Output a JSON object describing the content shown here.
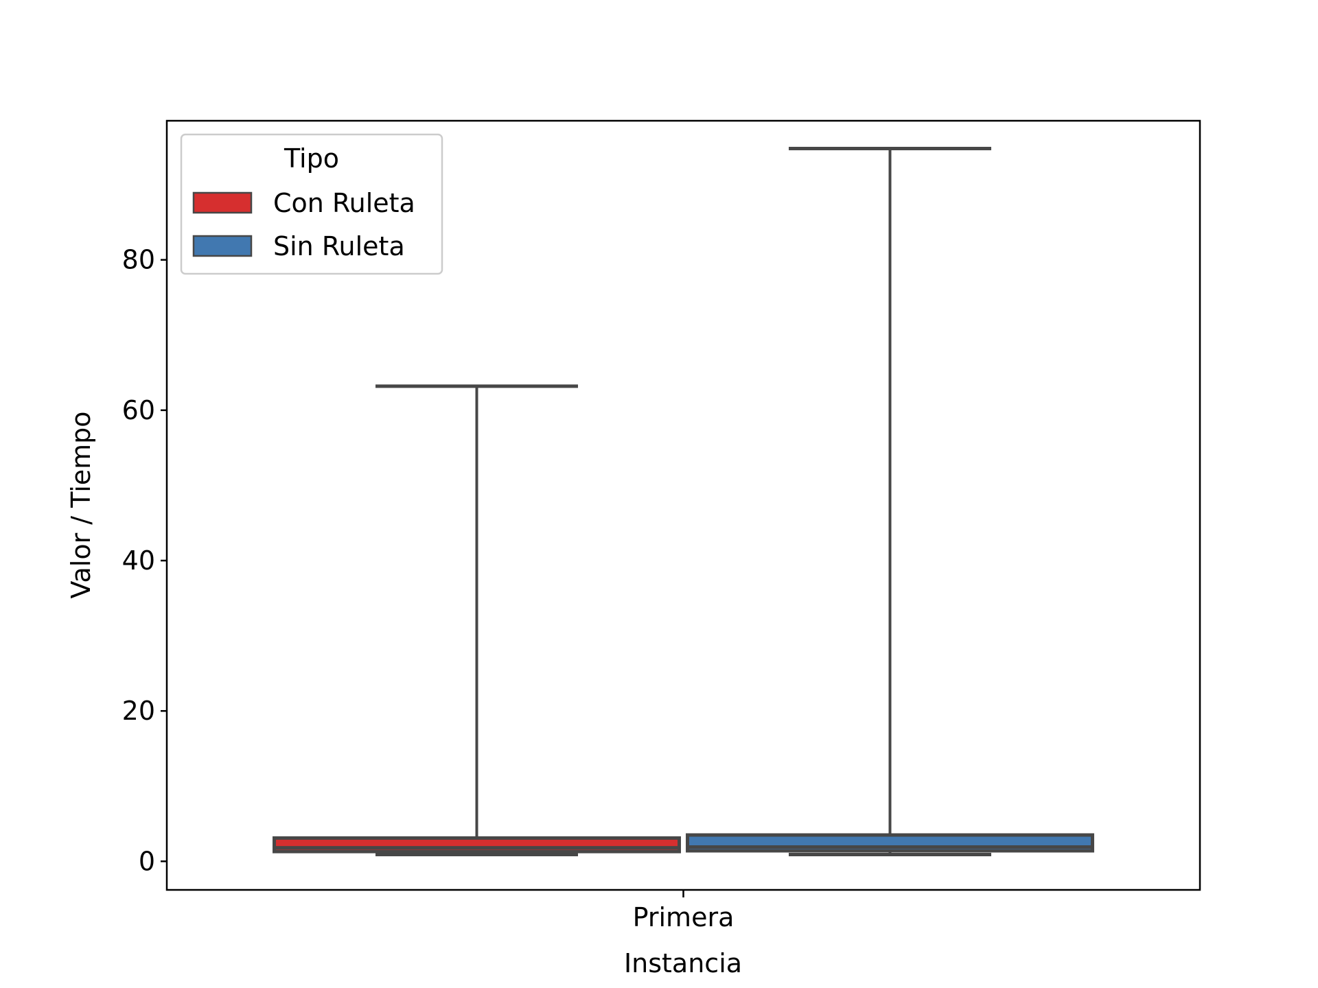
{
  "chart_data": {
    "type": "box",
    "xlabel": "Instancia",
    "ylabel": "Valor / Tiempo",
    "categories": [
      "Primera"
    ],
    "ylim": [
      -3.8,
      98.5
    ],
    "yticks": [
      0,
      20,
      40,
      60,
      80
    ],
    "grid": false,
    "legend": {
      "title": "Tipo",
      "placement": "top-left",
      "entries": [
        "Con Ruleta",
        "Sin Ruleta"
      ]
    },
    "series": [
      {
        "name": "Con Ruleta",
        "color": "#d62f2f",
        "whisker_low": 0.9,
        "q1": 1.3,
        "median": 1.8,
        "q3": 3.1,
        "whisker_high": 63.2
      },
      {
        "name": "Sin Ruleta",
        "color": "#4178b0",
        "whisker_low": 0.9,
        "q1": 1.4,
        "median": 1.9,
        "q3": 3.5,
        "whisker_high": 94.8
      }
    ],
    "colors": {
      "box_edge": "#474747",
      "axes": "#000000"
    }
  }
}
